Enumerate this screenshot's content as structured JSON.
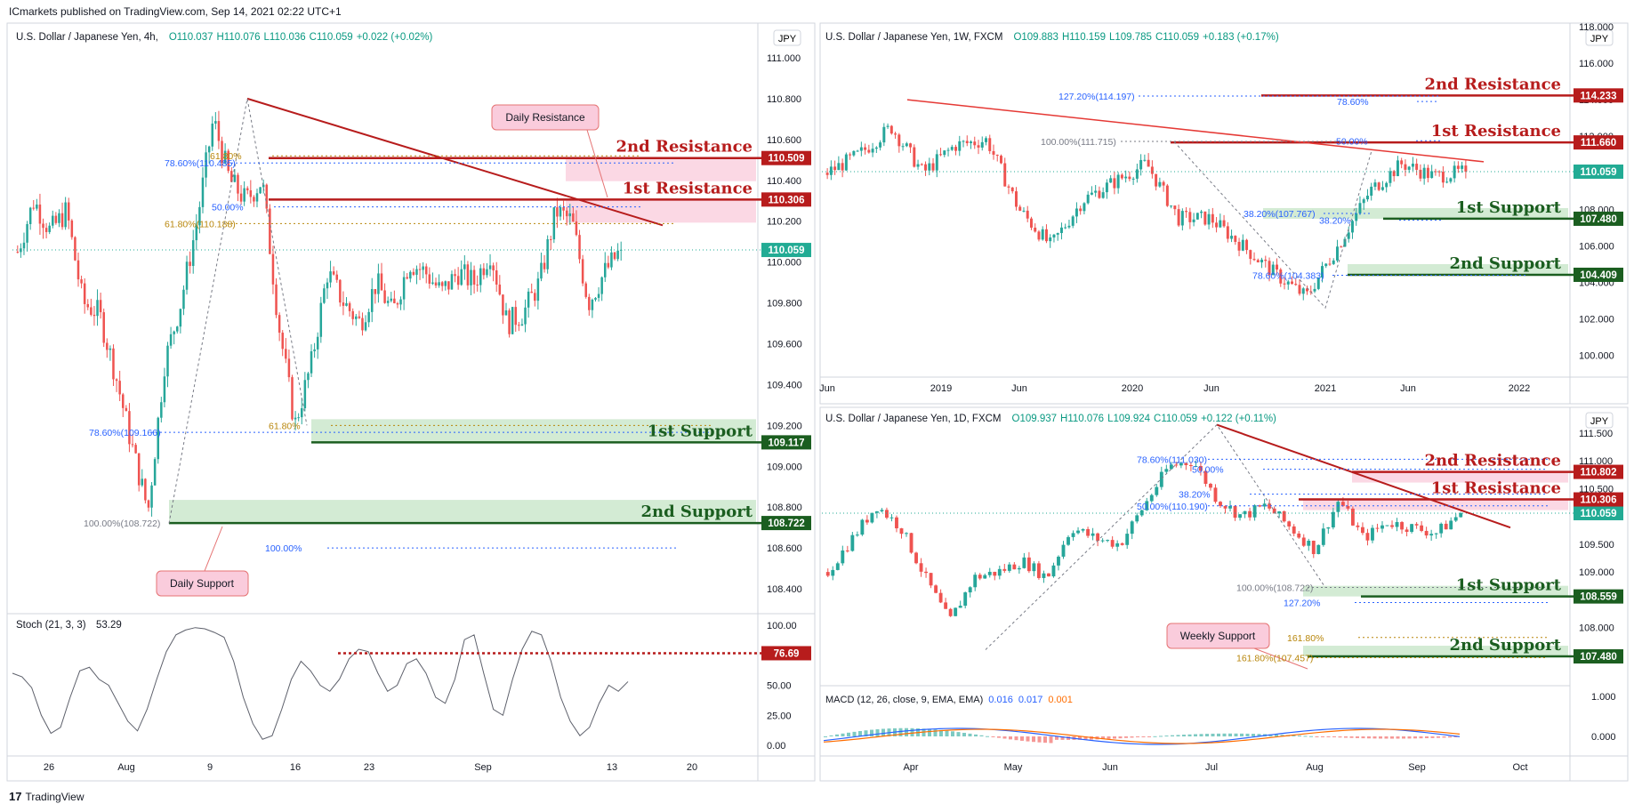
{
  "header": "ICmarkets published on TradingView.com, Sep 14, 2021 02:22 UTC+1",
  "footer": {
    "logo": "17",
    "brand": "TradingView"
  },
  "colors": {
    "resistance": "#b71c1c",
    "support": "#1b5e20",
    "up": "#26a69a",
    "down": "#ef5350",
    "price": "#22ab94",
    "fib_blue": "#2962ff",
    "fib_orange": "#b8860b"
  },
  "charts": [
    {
      "id": "h4",
      "title": "U.S. Dollar / Japanese Yen, 4h,",
      "ohlc": {
        "o": "O110.037",
        "h": "H110.076",
        "l": "L110.036",
        "c": "C110.059",
        "chg": "+0.022 (+0.02%)"
      },
      "currency": "JPY",
      "price_axis": [
        "111.000",
        "110.800",
        "110.600",
        "110.400",
        "110.200",
        "110.000",
        "109.800",
        "109.600",
        "109.400",
        "109.200",
        "109.000",
        "108.800",
        "108.600",
        "108.400"
      ],
      "time_axis": [
        "26",
        "Aug",
        "9",
        "16",
        "23",
        "Sep",
        "13",
        "20"
      ],
      "levels": [
        {
          "name": "2nd Resistance",
          "price": 110.509,
          "tag": "110.509",
          "type": "resistance"
        },
        {
          "name": "1st Resistance",
          "price": 110.306,
          "tag": "110.306",
          "type": "resistance"
        },
        {
          "name": "1st Support",
          "price": 109.117,
          "tag": "109.117",
          "type": "support"
        },
        {
          "name": "2nd Support",
          "price": 108.722,
          "tag": "108.722",
          "type": "support"
        }
      ],
      "last_price": "110.059",
      "fib_labels": [
        "78.60%(110.485)",
        "61.80%(110.188)",
        "61.80%",
        "50.00%",
        "78.60%(109.166)",
        "61.80%",
        "100.00%(108.722)",
        "100.00%"
      ],
      "callouts": [
        "Daily Resistance",
        "Daily Support"
      ],
      "indicator": {
        "label": "Stoch (21, 3, 3)",
        "value": "53.29",
        "axis": [
          "100.00",
          "75.00",
          "50.00",
          "25.00",
          "0.00"
        ],
        "level_tag": "76.69",
        "level_value": 76.69,
        "values": [
          60,
          57,
          48,
          25,
          10,
          15,
          40,
          62,
          65,
          55,
          50,
          35,
          20,
          12,
          30,
          55,
          78,
          92,
          96,
          98,
          97,
          94,
          90,
          70,
          40,
          18,
          5,
          8,
          30,
          55,
          70,
          62,
          50,
          45,
          55,
          72,
          80,
          78,
          60,
          45,
          50,
          68,
          72,
          60,
          40,
          35,
          55,
          88,
          92,
          60,
          30,
          25,
          55,
          80,
          95,
          92,
          70,
          40,
          20,
          8,
          15,
          35,
          50,
          45,
          53
        ]
      },
      "chart_data": {
        "type": "candlestick",
        "x": [
          "Jul 22",
          "Jul 23",
          "Jul 26",
          "Jul 27",
          "Jul 28",
          "Jul 29",
          "Jul 30",
          "Aug 2",
          "Aug 3",
          "Aug 4",
          "Aug 5",
          "Aug 6",
          "Aug 9",
          "Aug 10",
          "Aug 11",
          "Aug 12",
          "Aug 13",
          "Aug 16",
          "Aug 17",
          "Aug 18",
          "Aug 19",
          "Aug 20",
          "Aug 23",
          "Aug 24",
          "Aug 25",
          "Aug 26",
          "Aug 27",
          "Aug 30",
          "Aug 31",
          "Sep 1",
          "Sep 2",
          "Sep 3",
          "Sep 6",
          "Sep 7",
          "Sep 8",
          "Sep 9",
          "Sep 10",
          "Sep 13"
        ],
        "close": [
          110.05,
          110.3,
          110.15,
          110.25,
          109.8,
          109.75,
          109.45,
          109.1,
          108.78,
          109.5,
          109.8,
          110.2,
          110.7,
          110.4,
          110.3,
          110.4,
          109.7,
          109.2,
          109.5,
          109.95,
          109.8,
          109.7,
          109.9,
          109.75,
          110.0,
          109.95,
          109.85,
          109.95,
          109.9,
          110.05,
          109.7,
          109.75,
          109.9,
          110.25,
          110.2,
          109.8,
          109.95,
          110.06
        ],
        "ylim": [
          108.3,
          111.1
        ]
      }
    },
    {
      "id": "w1",
      "title": "U.S. Dollar / Japanese Yen, 1W, FXCM",
      "ohlc": {
        "o": "O109.883",
        "h": "H110.159",
        "l": "L109.785",
        "c": "C110.059",
        "chg": "+0.183 (+0.17%)"
      },
      "currency": "JPY",
      "price_axis": [
        "118.000",
        "116.000",
        "114.000",
        "112.000",
        "110.000",
        "108.000",
        "106.000",
        "104.000",
        "102.000",
        "100.000"
      ],
      "time_axis": [
        "Jun",
        "2019",
        "Jun",
        "2020",
        "Jun",
        "2021",
        "Jun",
        "2022"
      ],
      "levels": [
        {
          "name": "2nd Resistance",
          "price": 114.233,
          "tag": "114.233",
          "type": "resistance"
        },
        {
          "name": "1st Resistance",
          "price": 111.66,
          "tag": "111.660",
          "type": "resistance"
        },
        {
          "name": "1st Support",
          "price": 107.48,
          "tag": "107.480",
          "type": "support"
        },
        {
          "name": "2nd Support",
          "price": 104.409,
          "tag": "104.409",
          "type": "support"
        }
      ],
      "last_price": "110.059",
      "fib_labels": [
        "127.20%(114.197)",
        "78.60%",
        "100.00%(111.715)",
        "50.00%",
        "38.20%(107.767)",
        "38.20%",
        "78.60%(104.383)"
      ],
      "chart_data": {
        "type": "candlestick",
        "x": [
          "2018-06",
          "2018-08",
          "2018-10",
          "2018-12",
          "2019-02",
          "2019-04",
          "2019-06",
          "2019-08",
          "2019-10",
          "2019-12",
          "2020-02",
          "2020-04",
          "2020-06",
          "2020-08",
          "2020-10",
          "2020-12",
          "2021-02",
          "2021-04",
          "2021-06",
          "2021-08",
          "2021-09"
        ],
        "close": [
          110.0,
          111.0,
          112.5,
          110.0,
          111.5,
          111.8,
          108.0,
          106.0,
          108.5,
          109.5,
          110.5,
          107.5,
          107.5,
          106.0,
          104.5,
          103.2,
          106.0,
          109.0,
          110.5,
          109.8,
          110.06
        ],
        "ylim": [
          99.0,
          118.0
        ]
      }
    },
    {
      "id": "d1",
      "title": "U.S. Dollar / Japanese Yen, 1D, FXCM",
      "ohlc": {
        "o": "O109.937",
        "h": "H110.076",
        "l": "L109.924",
        "c": "C110.059",
        "chg": "+0.122 (+0.11%)"
      },
      "currency": "JPY",
      "price_axis": [
        "111.500",
        "111.000",
        "110.500",
        "110.000",
        "109.500",
        "109.000",
        "108.500",
        "108.000",
        "107.500"
      ],
      "time_axis": [
        "Apr",
        "May",
        "Jun",
        "Jul",
        "Aug",
        "Sep",
        "Oct"
      ],
      "levels": [
        {
          "name": "2nd Resistance",
          "price": 110.802,
          "tag": "110.802",
          "type": "resistance"
        },
        {
          "name": "1st Resistance",
          "price": 110.306,
          "tag": "110.306",
          "type": "resistance"
        },
        {
          "name": "1st Support",
          "price": 108.559,
          "tag": "108.559",
          "type": "support"
        },
        {
          "name": "2nd Support",
          "price": 107.48,
          "tag": "107.480",
          "type": "support"
        }
      ],
      "last_price": "110.059",
      "fib_labels": [
        "78.60%(111.030)",
        "50.00%",
        "38.20%",
        "50.00%(110.190)",
        "100.00%(108.722)",
        "127.20%",
        "161.80%",
        "161.80%(107.457)"
      ],
      "callouts": [
        "Weekly Support"
      ],
      "indicator": {
        "label": "MACD (12, 26, close, 9, EMA, EMA)",
        "v1": "0.016",
        "v2": "0.017",
        "v3": "0.001",
        "axis": [
          "1.000",
          "0.000"
        ]
      },
      "chart_data": {
        "type": "candlestick",
        "x": [
          "Mar 15",
          "Mar 22",
          "Mar 29",
          "Apr 5",
          "Apr 12",
          "Apr 19",
          "Apr 26",
          "May 3",
          "May 10",
          "May 17",
          "May 24",
          "May 31",
          "Jun 7",
          "Jun 14",
          "Jun 21",
          "Jun 28",
          "Jul 5",
          "Jul 12",
          "Jul 19",
          "Jul 26",
          "Aug 2",
          "Aug 9",
          "Aug 16",
          "Aug 23",
          "Aug 30",
          "Sep 6",
          "Sep 13"
        ],
        "close": [
          109.0,
          109.6,
          110.2,
          109.8,
          108.9,
          108.1,
          108.9,
          109.0,
          109.2,
          108.9,
          109.8,
          109.6,
          109.5,
          110.2,
          110.9,
          111.0,
          110.3,
          110.0,
          110.2,
          109.8,
          109.4,
          110.3,
          109.6,
          109.9,
          109.8,
          109.7,
          110.06
        ],
        "ylim": [
          107.0,
          111.9
        ]
      }
    }
  ]
}
